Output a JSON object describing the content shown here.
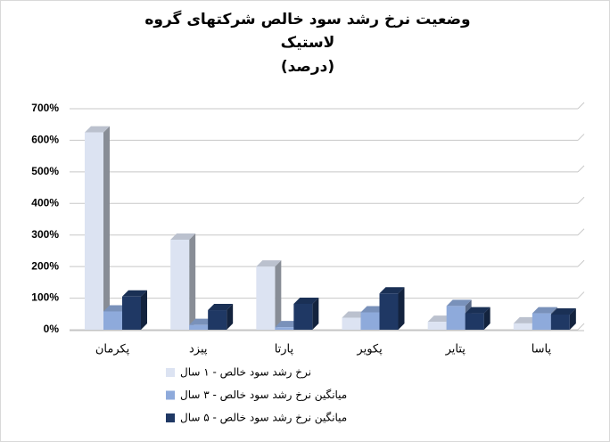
{
  "chart_data": {
    "type": "bar3d",
    "title": [
      "وضعیت نرخ رشد سود خالص شرکتهای گروه",
      "لاستیک",
      "(درصد)"
    ],
    "categories": [
      "پکرمان",
      "پیزد",
      "پارتا",
      "پکویر",
      "پتایر",
      "پاسا"
    ],
    "series": [
      {
        "name": "نرخ رشد سود خالص - ۱ سال",
        "color": "#dce3f2",
        "values": [
          625,
          285,
          200,
          38,
          25,
          20
        ]
      },
      {
        "name": "میانگین نرخ رشد سود خالص - ۳ سال",
        "color": "#8eaadb",
        "values": [
          58,
          15,
          8,
          55,
          75,
          52
        ]
      },
      {
        "name": "میانگین نرخ رشد سود خالص - ۵ سال",
        "color": "#1f3864",
        "values": [
          105,
          62,
          82,
          115,
          52,
          48
        ]
      }
    ],
    "ylim": [
      0,
      700
    ],
    "yticks": [
      {
        "value": 0,
        "label": "0%"
      },
      {
        "value": 100,
        "label": "100%"
      },
      {
        "value": 200,
        "label": "200%"
      },
      {
        "value": 300,
        "label": "300%"
      },
      {
        "value": 400,
        "label": "400%"
      },
      {
        "value": 500,
        "label": "500%"
      },
      {
        "value": 600,
        "label": "600%"
      },
      {
        "value": 700,
        "label": "700%"
      }
    ],
    "grid": true,
    "legend": "bottom"
  }
}
